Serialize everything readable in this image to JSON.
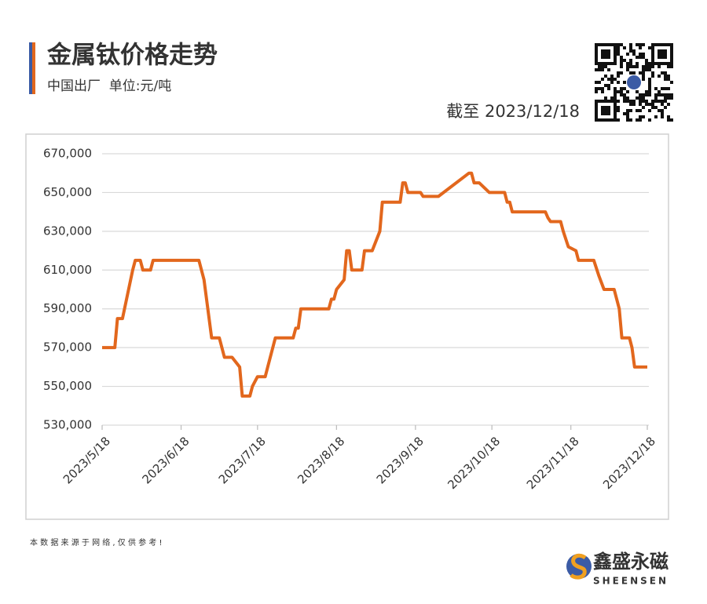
{
  "chart_data": {
    "type": "line",
    "title": "金属钛价格走势",
    "subtitle": "中国出厂  单位:元/吨",
    "annotation": "截至 2023/12/18",
    "x": [
      "2023/5/18",
      "2023/5/23",
      "2023/5/24",
      "2023/5/26",
      "2023/5/30",
      "2023/5/31",
      "2023/6/2",
      "2023/6/3",
      "2023/6/6",
      "2023/6/7",
      "2023/6/25",
      "2023/6/27",
      "2023/6/30",
      "2023/7/3",
      "2023/7/5",
      "2023/7/8",
      "2023/7/11",
      "2023/7/12",
      "2023/7/15",
      "2023/7/16",
      "2023/7/18",
      "2023/7/21",
      "2023/7/22",
      "2023/7/25",
      "2023/8/1",
      "2023/8/2",
      "2023/8/3",
      "2023/8/4",
      "2023/8/15",
      "2023/8/16",
      "2023/8/17",
      "2023/8/18",
      "2023/8/21",
      "2023/8/22",
      "2023/8/23",
      "2023/8/24",
      "2023/8/28",
      "2023/8/29",
      "2023/9/1",
      "2023/9/4",
      "2023/9/5",
      "2023/9/12",
      "2023/9/13",
      "2023/9/14",
      "2023/9/15",
      "2023/9/20",
      "2023/9/21",
      "2023/9/27",
      "2023/10/9",
      "2023/10/10",
      "2023/10/11",
      "2023/10/13",
      "2023/10/17",
      "2023/10/23",
      "2023/10/24",
      "2023/10/25",
      "2023/10/26",
      "2023/11/8",
      "2023/11/9",
      "2023/11/10",
      "2023/11/14",
      "2023/11/15",
      "2023/11/17",
      "2023/11/20",
      "2023/11/21",
      "2023/11/27",
      "2023/11/29",
      "2023/12/1",
      "2023/12/5",
      "2023/12/7",
      "2023/12/8",
      "2023/12/11",
      "2023/12/12",
      "2023/12/13",
      "2023/12/18"
    ],
    "series": [
      {
        "color": "#e2671d",
        "values": [
          570000,
          570000,
          585000,
          585000,
          610000,
          615000,
          615000,
          610000,
          610000,
          615000,
          615000,
          605000,
          575000,
          575000,
          565000,
          565000,
          560000,
          545000,
          545000,
          550000,
          555000,
          555000,
          560000,
          575000,
          575000,
          580000,
          580000,
          590000,
          590000,
          595000,
          595000,
          600000,
          605000,
          620000,
          620000,
          610000,
          610000,
          620000,
          620000,
          630000,
          645000,
          645000,
          655000,
          655000,
          650000,
          650000,
          648000,
          648000,
          660000,
          660000,
          655000,
          655000,
          650000,
          650000,
          645000,
          645000,
          640000,
          640000,
          637000,
          635000,
          635000,
          630000,
          622000,
          620000,
          615000,
          615000,
          607000,
          600000,
          600000,
          590000,
          575000,
          575000,
          570000,
          560000,
          560000
        ]
      }
    ],
    "xlim": [
      "2023/5/18",
      "2023/12/18"
    ],
    "xticks": [
      "2023/5/18",
      "2023/6/18",
      "2023/7/18",
      "2023/8/18",
      "2023/9/18",
      "2023/10/18",
      "2023/11/18",
      "2023/12/18"
    ],
    "ylim": [
      530000,
      670000
    ],
    "yticks": [
      {
        "value": 530000,
        "label": "530,000"
      },
      {
        "value": 550000,
        "label": "550,000"
      },
      {
        "value": 570000,
        "label": "570,000"
      },
      {
        "value": 590000,
        "label": "590,000"
      },
      {
        "value": 610000,
        "label": "610,000"
      },
      {
        "value": 630000,
        "label": "630,000"
      },
      {
        "value": 650000,
        "label": "650,000"
      },
      {
        "value": 670000,
        "label": "670,000"
      }
    ],
    "grid": true
  },
  "source_note": "本 数 据 来 源 于 网 络 , 仅 供 参 考 !",
  "brand": {
    "name": "鑫盛永磁",
    "latin": "SHEENSEN"
  }
}
